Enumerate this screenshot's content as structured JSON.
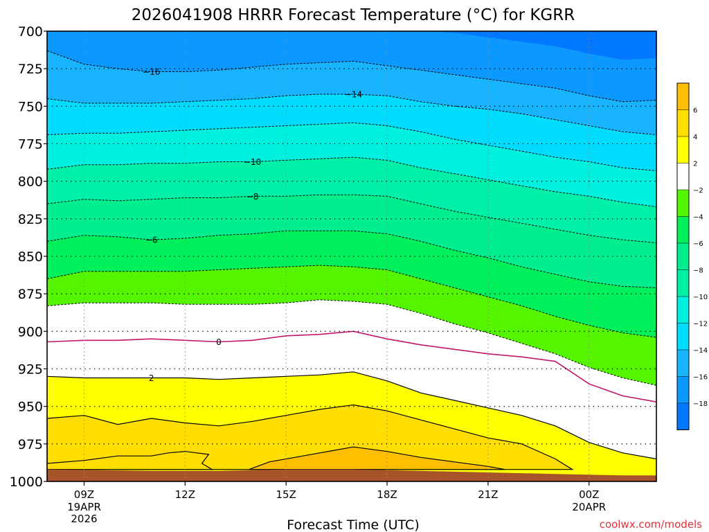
{
  "chart_data": {
    "type": "contour",
    "title": "2026041908 HRRR Forecast Temperature (°C) for KGRR",
    "xlabel": "Forecast Time (UTC)",
    "credit": "coolwx.com/models",
    "x_ticks": [
      {
        "label": "09Z",
        "hour": 9,
        "sub": [
          "19APR",
          "2026"
        ]
      },
      {
        "label": "12Z",
        "hour": 12,
        "sub": []
      },
      {
        "label": "15Z",
        "hour": 15,
        "sub": []
      },
      {
        "label": "18Z",
        "hour": 18,
        "sub": []
      },
      {
        "label": "21Z",
        "hour": 21,
        "sub": []
      },
      {
        "label": "00Z",
        "hour": 24,
        "sub": [
          "20APR"
        ]
      }
    ],
    "xlim_hours": [
      7.9,
      26.0
    ],
    "y_axis": {
      "label": "",
      "levels": [
        700,
        725,
        750,
        775,
        800,
        825,
        850,
        875,
        900,
        925,
        950,
        975,
        1000
      ],
      "range": [
        700,
        1000
      ],
      "inverted": true
    },
    "hours": [
      7.9,
      9,
      10,
      11,
      12,
      13,
      14,
      15,
      16,
      17,
      18,
      19,
      20,
      21,
      22,
      23,
      24,
      25,
      26
    ],
    "isotherms": [
      {
        "temp": -16,
        "label": "−16",
        "label_hour": 11,
        "p": [
          713,
          722,
          725,
          727,
          727,
          726,
          724,
          722,
          721,
          720,
          723,
          726,
          729,
          732,
          735,
          738,
          743,
          747,
          746
        ]
      },
      {
        "temp": -14,
        "label": "−14",
        "label_hour": 17,
        "p": [
          745,
          748,
          748,
          748,
          747,
          746,
          745,
          743,
          742,
          742,
          743,
          747,
          750,
          752,
          755,
          759,
          763,
          767,
          769
        ]
      },
      {
        "temp": -12,
        "label": "",
        "label_hour": null,
        "p": [
          769,
          768,
          768,
          767,
          766,
          765,
          764,
          763,
          762,
          761,
          763,
          767,
          772,
          776,
          780,
          784,
          787,
          791,
          793
        ]
      },
      {
        "temp": -10,
        "label": "−10",
        "label_hour": 14,
        "p": [
          792,
          789,
          789,
          788,
          788,
          787,
          787,
          786,
          785,
          784,
          786,
          791,
          795,
          799,
          803,
          807,
          810,
          814,
          817
        ]
      },
      {
        "temp": -8,
        "label": "−8",
        "label_hour": 14,
        "p": [
          815,
          812,
          813,
          812,
          811,
          811,
          810,
          810,
          809,
          809,
          810,
          815,
          820,
          824,
          828,
          832,
          836,
          839,
          841
        ]
      },
      {
        "temp": -6,
        "label": "−6",
        "label_hour": 11,
        "p": [
          840,
          836,
          837,
          839,
          838,
          836,
          835,
          833,
          833,
          833,
          835,
          840,
          846,
          851,
          857,
          862,
          867,
          870,
          871
        ]
      },
      {
        "temp": -4,
        "label": "",
        "label_hour": null,
        "p": [
          865,
          860,
          860,
          860,
          860,
          859,
          858,
          857,
          856,
          857,
          859,
          865,
          871,
          877,
          883,
          890,
          896,
          901,
          904
        ]
      },
      {
        "temp": -2,
        "label": "",
        "label_hour": null,
        "p": [
          883,
          881,
          881,
          881,
          882,
          882,
          882,
          881,
          879,
          880,
          882,
          888,
          895,
          901,
          908,
          915,
          924,
          931,
          936
        ]
      },
      {
        "temp": 0,
        "label": "0",
        "label_hour": 13,
        "p": [
          907,
          906,
          906,
          905,
          906,
          907,
          906,
          903,
          902,
          900,
          905,
          909,
          912,
          915,
          917,
          920,
          935,
          943,
          947
        ]
      },
      {
        "temp": 2,
        "label": "2",
        "label_hour": 11,
        "p": [
          930,
          931,
          931,
          931,
          931,
          932,
          931,
          930,
          929,
          927,
          933,
          941,
          946,
          951,
          956,
          963,
          974,
          981,
          985
        ]
      }
    ],
    "filled_bands": [
      {
        "range": "<-18",
        "color": "#0277ff"
      },
      {
        "range": "-18 to -16",
        "color": "#0b98ff"
      },
      {
        "range": "-16 to -14",
        "color": "#18b5fe"
      },
      {
        "range": "-14 to -12",
        "color": "#00dcfe"
      },
      {
        "range": "-12 to -10",
        "color": "#00f0e0"
      },
      {
        "range": "-10 to -8",
        "color": "#00f0a7"
      },
      {
        "range": "-8 to -6",
        "color": "#00ee8d"
      },
      {
        "range": "-6 to -4",
        "color": "#00f05b"
      },
      {
        "range": "-4 to -2",
        "color": "#55f500"
      },
      {
        "range": "-2 to 0",
        "color": "#ffffff"
      },
      {
        "range": "0 to 2",
        "color": "#ffffff"
      },
      {
        "range": "2 to 4",
        "color": "#ffff00"
      },
      {
        "range": "4 to 6",
        "color": "#ffde00"
      },
      {
        "range": ">6",
        "color": "#ffbe00"
      }
    ],
    "legend": {
      "placement": "right",
      "labels": [
        "6",
        "4",
        "2",
        "−2",
        "−4",
        "−6",
        "−8",
        "−10",
        "−12",
        "−14",
        "−16",
        "−18"
      ],
      "colors": [
        "#ffbe00",
        "#ffde00",
        "#ffff00",
        "#ffffff",
        "#55f500",
        "#00f05b",
        "#00ee8d",
        "#00f0a7",
        "#00f0e0",
        "#00dcfe",
        "#18b5fe",
        "#0b98ff",
        "#0277ff"
      ]
    },
    "ground_color": "#a8542a",
    "grid": true
  }
}
